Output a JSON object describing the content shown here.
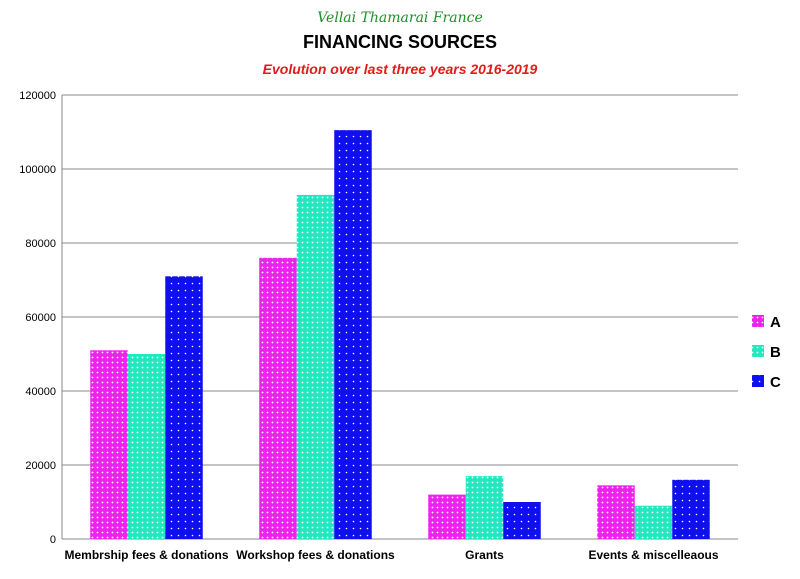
{
  "header": {
    "org": "Vellai Thamarai France",
    "title": "FINANCING SOURCES",
    "subtitle": "Evolution over last three years 2016-2019"
  },
  "colors": {
    "A": "#ee22ee",
    "B": "#22e8c0",
    "C": "#1010ee"
  },
  "chart_data": {
    "type": "bar",
    "title": "FINANCING SOURCES",
    "subtitle": "Evolution over last three years 2016-2019",
    "categories": [
      "Membrship fees & donations",
      "Workshop fees & donations",
      "Grants",
      "Events & miscelleaous"
    ],
    "series": [
      {
        "name": "A",
        "values": [
          51000,
          76000,
          12000,
          14500
        ]
      },
      {
        "name": "B",
        "values": [
          50000,
          93000,
          17000,
          9000
        ]
      },
      {
        "name": "C",
        "values": [
          71000,
          110500,
          10000,
          16000
        ]
      }
    ],
    "ylim": [
      0,
      120000
    ],
    "yticks": [
      "0",
      "20000",
      "40000",
      "60000",
      "80000",
      "100000",
      "120000"
    ],
    "grid": true,
    "legend": "right"
  }
}
